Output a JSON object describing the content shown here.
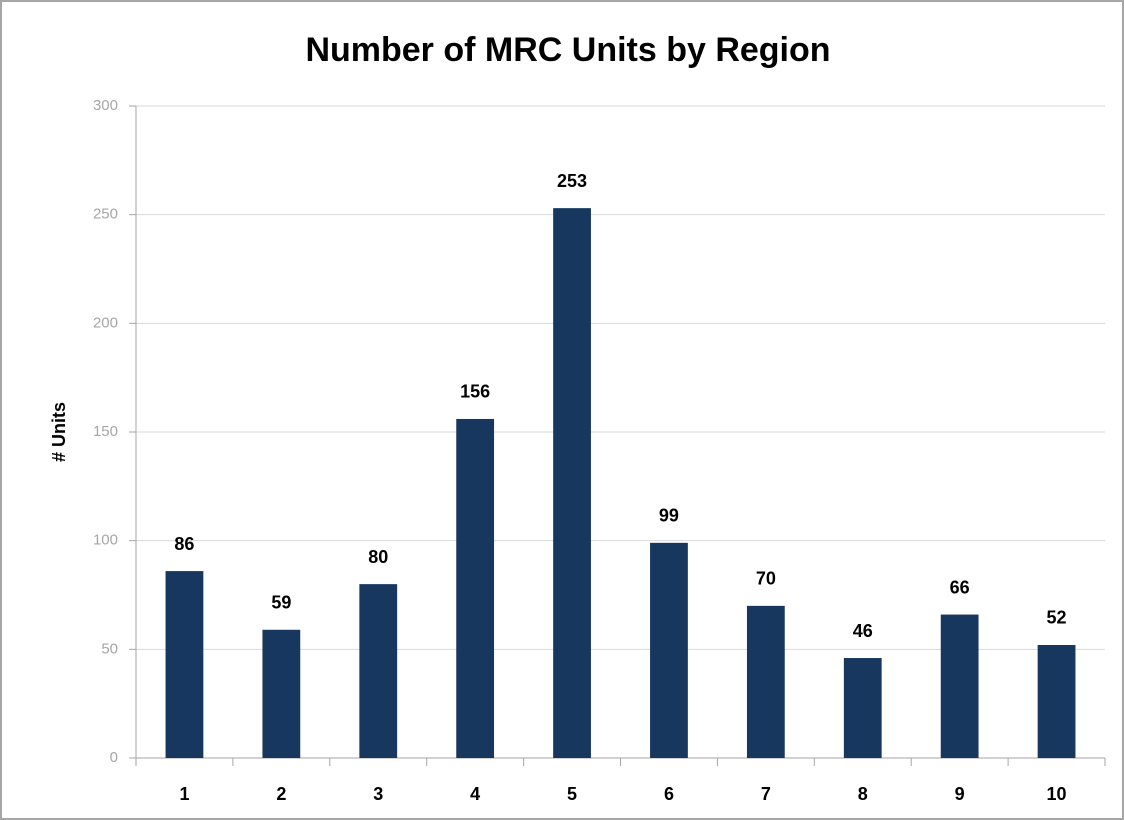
{
  "chart_data": {
    "type": "bar",
    "title": "Number of MRC Units by Region",
    "y_label": "# Units",
    "categories": [
      "1",
      "2",
      "3",
      "4",
      "5",
      "6",
      "7",
      "8",
      "9",
      "10"
    ],
    "values": [
      86,
      59,
      80,
      156,
      253,
      99,
      70,
      46,
      66,
      52
    ],
    "color": "#17375e",
    "ylim": [
      0,
      300
    ],
    "yticks": [
      0,
      50,
      100,
      150,
      200,
      250,
      300
    ],
    "grid": true
  }
}
